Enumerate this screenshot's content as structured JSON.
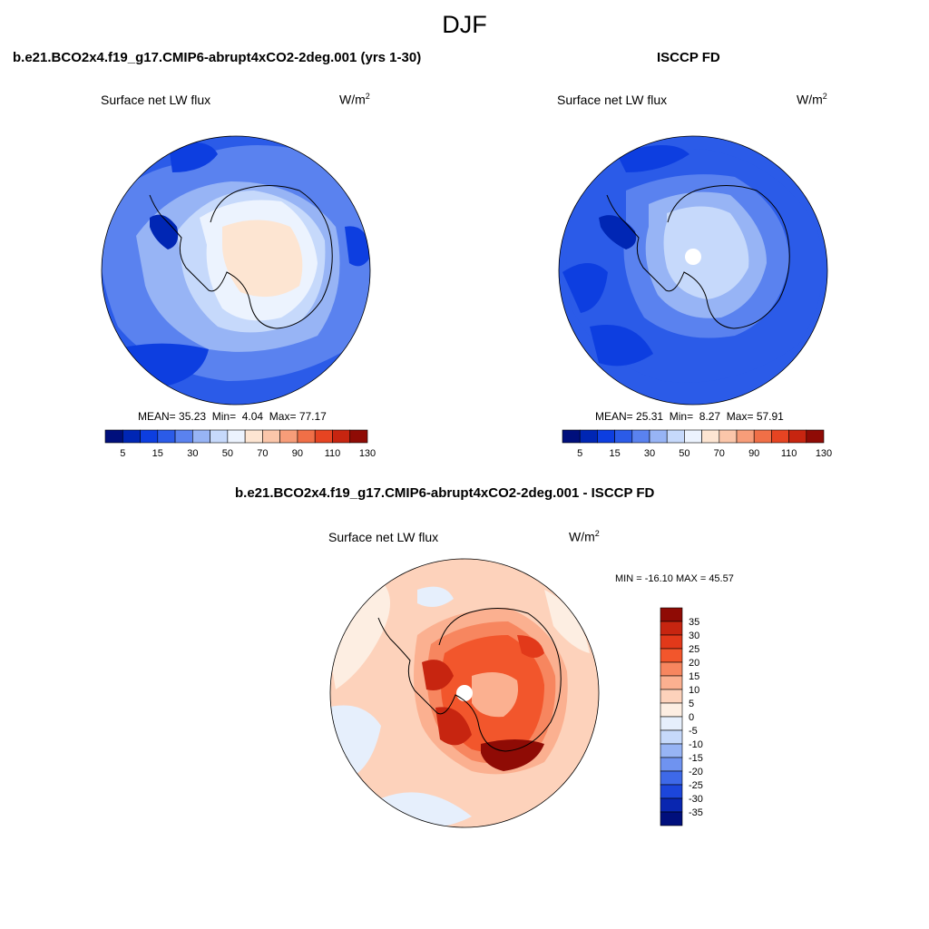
{
  "figure": {
    "season": "DJF"
  },
  "panels": [
    {
      "title": "b.e21.BCO2x4.f19_g17.CMIP6-abrupt4xCO2-2deg.001 (yrs 1-30)",
      "variable": "Surface net LW flux",
      "units_base": "W/m",
      "units_exp": "2",
      "stats": {
        "mean_label": "MEAN=",
        "mean": "35.23",
        "min_label": "Min=",
        "min": "4.04",
        "max_label": "Max=",
        "max": "77.17"
      },
      "colorbar": {
        "labels": [
          "5",
          "15",
          "30",
          "50",
          "70",
          "90",
          "110",
          "130"
        ],
        "colors": [
          "#000f7c",
          "#0026b4",
          "#0d3ee0",
          "#2b5be8",
          "#5a82ef",
          "#97b4f5",
          "#c6d9fb",
          "#ecf3fe",
          "#fde5d2",
          "#fbc6aa",
          "#f79d79",
          "#f06f47",
          "#e64422",
          "#c72510",
          "#8f0b05"
        ]
      }
    },
    {
      "title": "ISCCP FD",
      "variable": "Surface net LW flux",
      "units_base": "W/m",
      "units_exp": "2",
      "stats": {
        "mean_label": "MEAN=",
        "mean": "25.31",
        "min_label": "Min=",
        "min": "8.27",
        "max_label": "Max=",
        "max": "57.91"
      },
      "colorbar": {
        "labels": [
          "5",
          "15",
          "30",
          "50",
          "70",
          "90",
          "110",
          "130"
        ],
        "colors": [
          "#000f7c",
          "#0026b4",
          "#0d3ee0",
          "#2b5be8",
          "#5a82ef",
          "#97b4f5",
          "#c6d9fb",
          "#ecf3fe",
          "#fde5d2",
          "#fbc6aa",
          "#f79d79",
          "#f06f47",
          "#e64422",
          "#c72510",
          "#8f0b05"
        ]
      }
    },
    {
      "title": "b.e21.BCO2x4.f19_g17.CMIP6-abrupt4xCO2-2deg.001 - ISCCP FD",
      "variable": "Surface net LW flux",
      "units_base": "W/m",
      "units_exp": "2",
      "stats_text": "MIN = -16.10 MAX =  45.57",
      "colorbar": {
        "labels": [
          "35",
          "30",
          "25",
          "20",
          "15",
          "10",
          "5",
          "0",
          "-5",
          "-10",
          "-15",
          "-20",
          "-25",
          "-30",
          "-35"
        ],
        "colors": [
          "#8f0b05",
          "#c72510",
          "#e2391a",
          "#f2562c",
          "#f7865f",
          "#fbb090",
          "#fdd2bb",
          "#fdeee2",
          "#e6effc",
          "#c6d9fb",
          "#97b4f5",
          "#6f93f0",
          "#3e69e8",
          "#1c46db",
          "#0926b0",
          "#000f7c"
        ]
      }
    }
  ]
}
